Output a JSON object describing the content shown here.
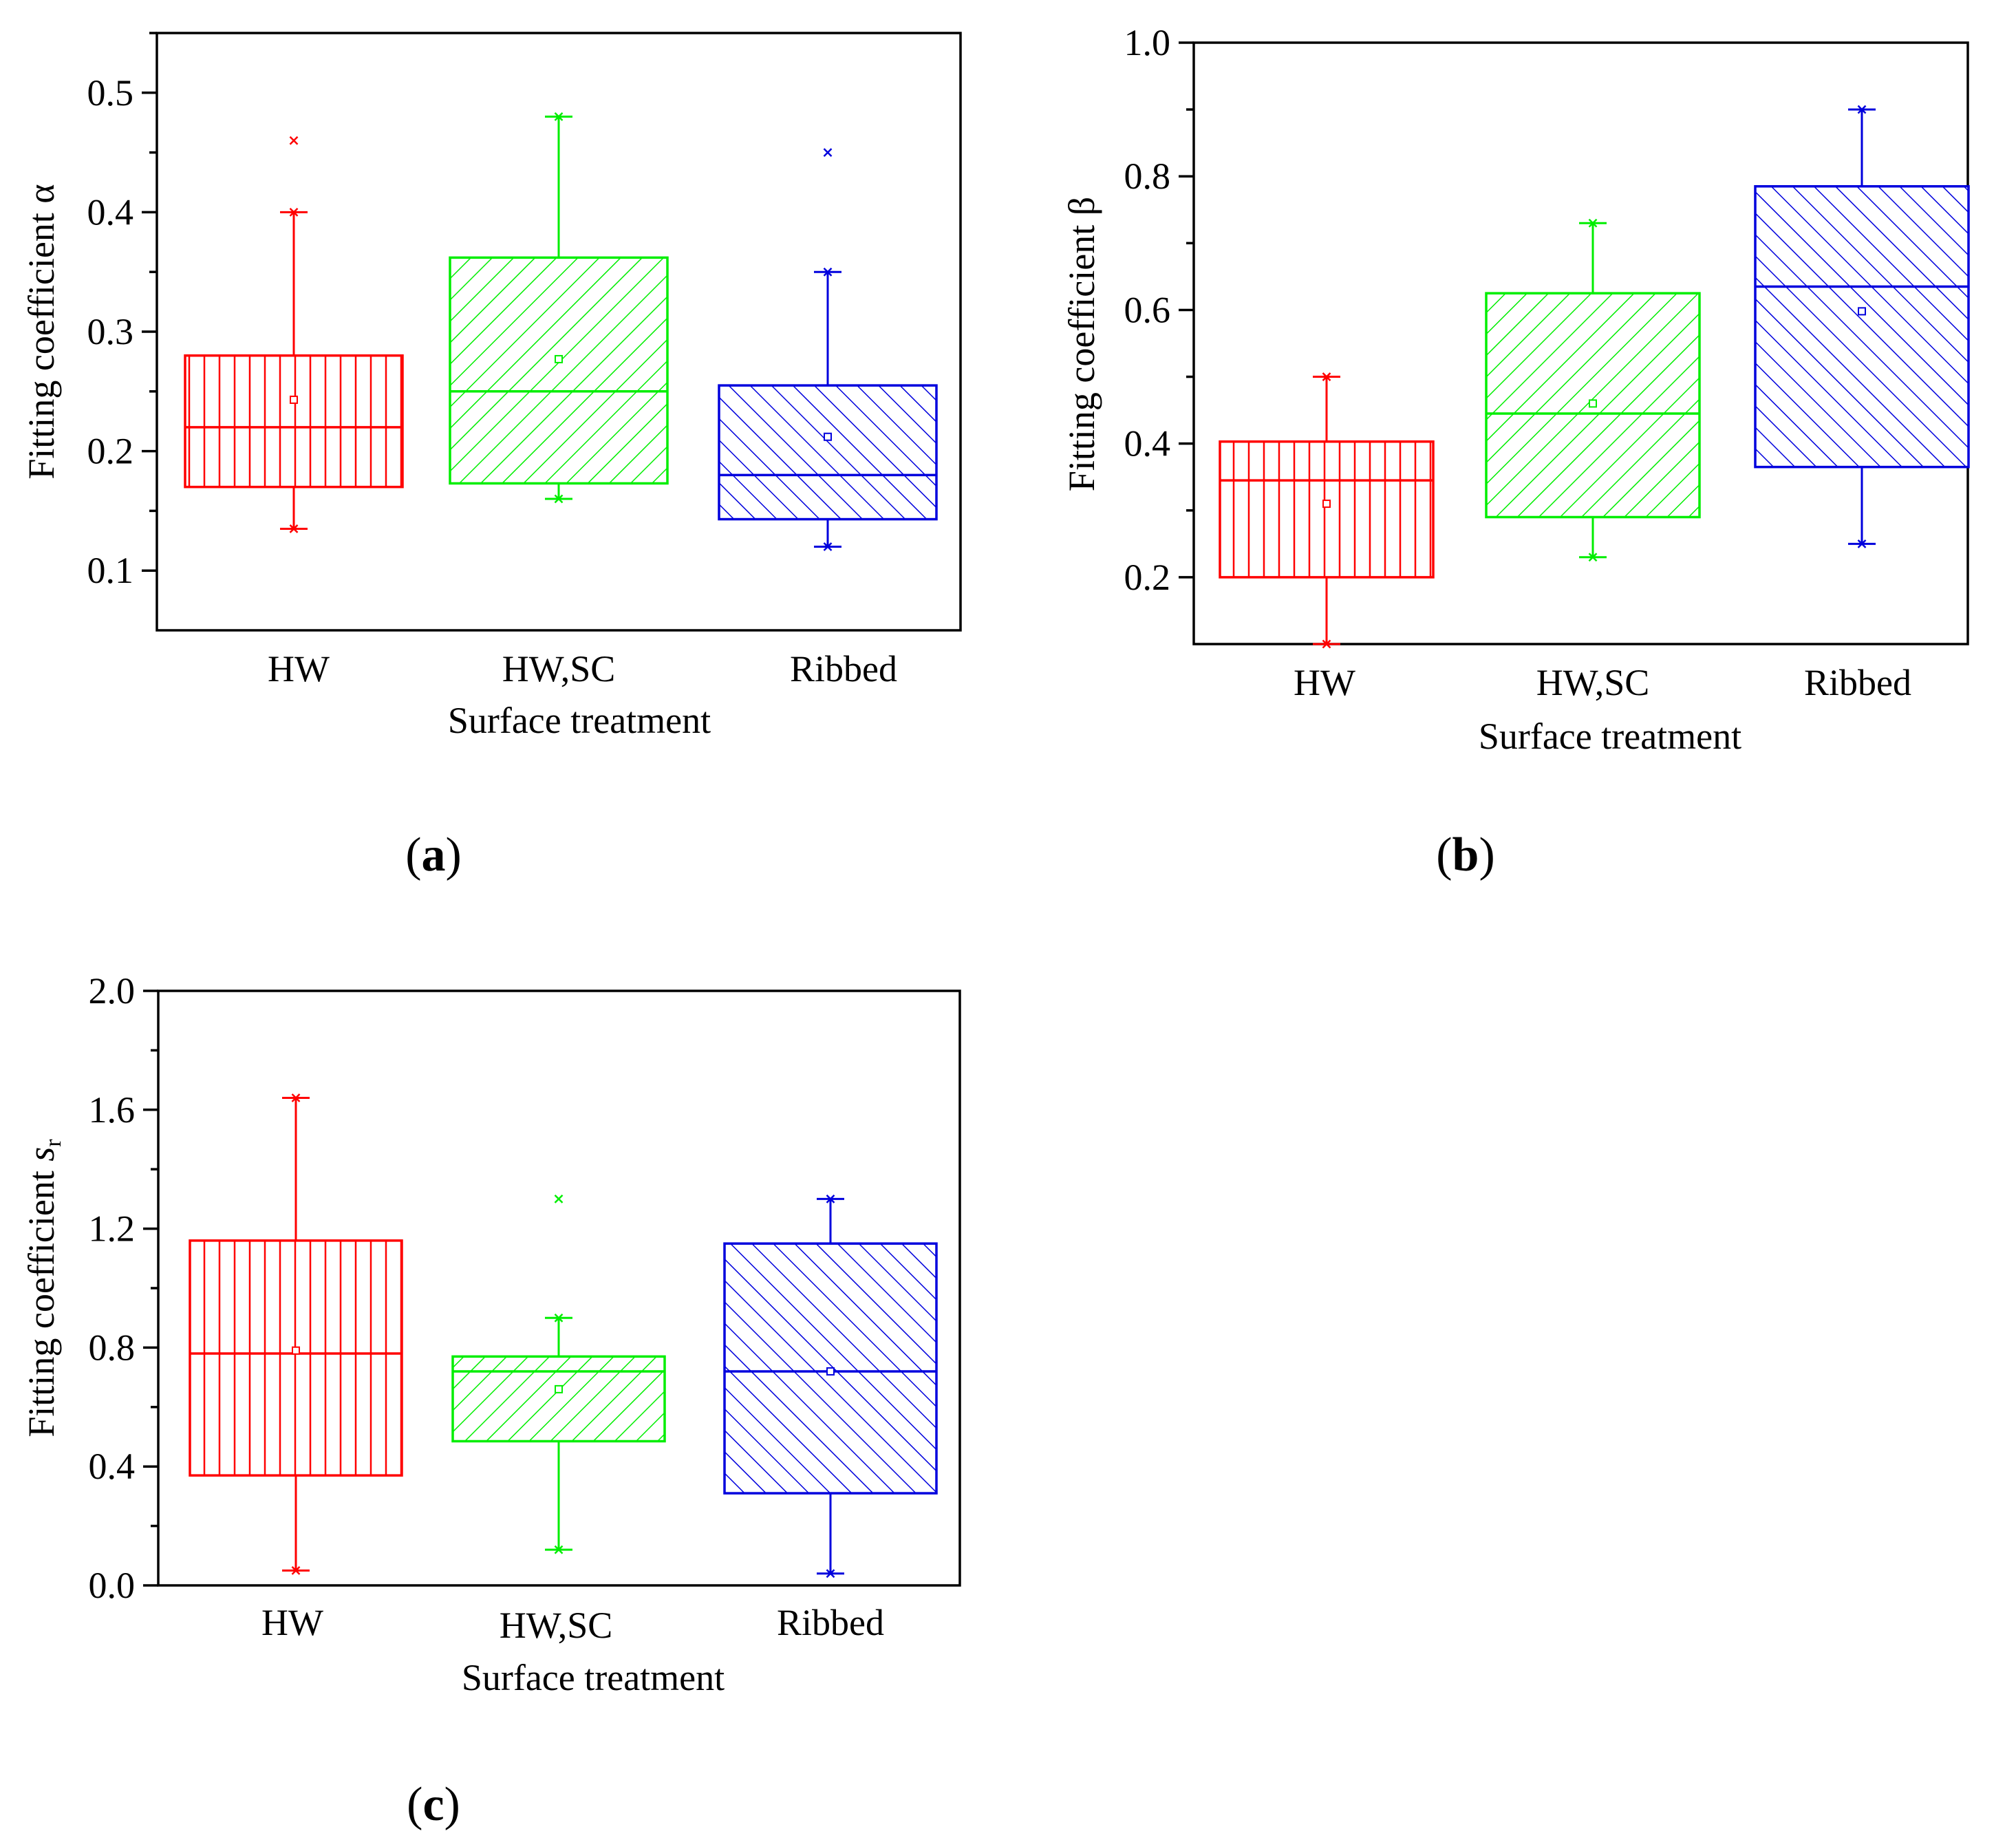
{
  "chart_data": [
    {
      "type": "box",
      "caption_letter": "a",
      "xlabel": "Surface treatment",
      "ylabel": "Fitting coefficient α",
      "ylim": [
        0.05,
        0.55
      ],
      "yticks": [
        "0.1",
        "0.2",
        "0.3",
        "0.4",
        "0.5"
      ],
      "categories": [
        "HW",
        "HW,SC",
        "Ribbed"
      ],
      "series": [
        {
          "category": "HW",
          "color": "#ff0000",
          "pattern": "vertical",
          "whisker_low": 0.135,
          "q1": 0.17,
          "median": 0.22,
          "q3": 0.28,
          "whisker_high": 0.4,
          "mean": 0.243,
          "outliers": [
            0.46
          ]
        },
        {
          "category": "HW,SC",
          "color": "#00ee00",
          "pattern": "diag-up",
          "whisker_low": 0.16,
          "q1": 0.173,
          "median": 0.25,
          "q3": 0.362,
          "whisker_high": 0.48,
          "mean": 0.277,
          "outliers": []
        },
        {
          "category": "Ribbed",
          "color": "#0000dd",
          "pattern": "diag-down",
          "whisker_low": 0.12,
          "q1": 0.143,
          "median": 0.18,
          "q3": 0.255,
          "whisker_high": 0.35,
          "mean": 0.212,
          "outliers": [
            0.45
          ]
        }
      ]
    },
    {
      "type": "box",
      "caption_letter": "b",
      "xlabel": "Surface treatment",
      "ylabel": "Fitting coefficient β",
      "ylim": [
        0.1,
        1.0
      ],
      "yticks": [
        "0.2",
        "0.4",
        "0.6",
        "0.8",
        "1.0"
      ],
      "categories": [
        "HW",
        "HW,SC",
        "Ribbed"
      ],
      "series": [
        {
          "category": "HW",
          "color": "#ff0000",
          "pattern": "vertical",
          "whisker_low": 0.1,
          "q1": 0.2,
          "median": 0.345,
          "q3": 0.403,
          "whisker_high": 0.5,
          "mean": 0.31,
          "outliers": []
        },
        {
          "category": "HW,SC",
          "color": "#00ee00",
          "pattern": "diag-up",
          "whisker_low": 0.23,
          "q1": 0.29,
          "median": 0.445,
          "q3": 0.625,
          "whisker_high": 0.73,
          "mean": 0.46,
          "outliers": []
        },
        {
          "category": "Ribbed",
          "color": "#0000dd",
          "pattern": "diag-down",
          "whisker_low": 0.25,
          "q1": 0.365,
          "median": 0.635,
          "q3": 0.785,
          "whisker_high": 0.9,
          "mean": 0.598,
          "outliers": []
        }
      ]
    },
    {
      "type": "box",
      "caption_letter": "c",
      "xlabel": "Surface treatment",
      "ylabel_prefix": "Fitting coefficient ",
      "ylabel_var": "s",
      "ylabel_sub": "r",
      "ylim": [
        0.0,
        2.0
      ],
      "yticks": [
        "0.0",
        "0.4",
        "0.8",
        "1.2",
        "1.6",
        "2.0"
      ],
      "categories": [
        "HW",
        "HW,SC",
        "Ribbed"
      ],
      "series": [
        {
          "category": "HW",
          "color": "#ff0000",
          "pattern": "vertical",
          "whisker_low": 0.05,
          "q1": 0.37,
          "median": 0.78,
          "q3": 1.16,
          "whisker_high": 1.64,
          "mean": 0.79,
          "outliers": []
        },
        {
          "category": "HW,SC",
          "color": "#00ee00",
          "pattern": "diag-up",
          "whisker_low": 0.12,
          "q1": 0.485,
          "median": 0.72,
          "q3": 0.77,
          "whisker_high": 0.9,
          "mean": 0.66,
          "outliers": [
            1.3
          ]
        },
        {
          "category": "Ribbed",
          "color": "#0000dd",
          "pattern": "diag-down",
          "whisker_low": 0.04,
          "q1": 0.31,
          "median": 0.72,
          "q3": 1.15,
          "whisker_high": 1.3,
          "mean": 0.72,
          "outliers": []
        }
      ]
    }
  ]
}
